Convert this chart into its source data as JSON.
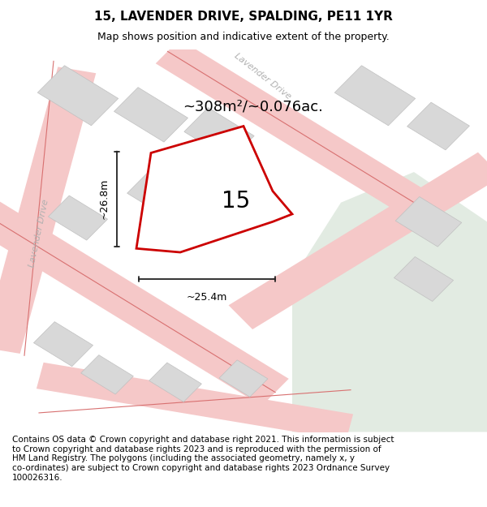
{
  "title": "15, LAVENDER DRIVE, SPALDING, PE11 1YR",
  "subtitle": "Map shows position and indicative extent of the property.",
  "footer": "Contains OS data © Crown copyright and database right 2021. This information is subject\nto Crown copyright and database rights 2023 and is reproduced with the permission of\nHM Land Registry. The polygons (including the associated geometry, namely x, y\nco-ordinates) are subject to Crown copyright and database rights 2023 Ordnance Survey\n100026316.",
  "area_label": "~308m²/~0.076ac.",
  "plot_number": "15",
  "dim_width": "~25.4m",
  "dim_height": "~26.8m",
  "map_bg": "#eeeceb",
  "road_fill_color": "#f5c8c8",
  "road_edge_color": "#e89090",
  "road_center_color": "#d87070",
  "building_fill": "#d8d8d8",
  "building_edge": "#c0c0c0",
  "green_color": "#e2ebe2",
  "plot_outline_color": "#cc0000",
  "plot_fill_color": "#ffffff",
  "dim_line_color": "#222222",
  "street_label_color": "#b0b0b0",
  "title_fontsize": 11,
  "subtitle_fontsize": 9,
  "footer_fontsize": 7.5,
  "map_xlim": [
    0,
    100
  ],
  "map_ylim": [
    0,
    100
  ]
}
